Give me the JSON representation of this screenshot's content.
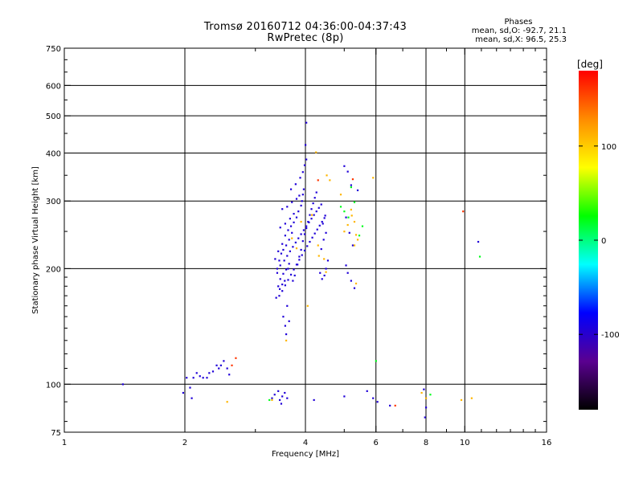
{
  "header": {
    "title_line1": "Tromsø 20160712 04:36:00-04:37:43",
    "title_line2": "RwPretec (8p)",
    "stats_heading": "Phases",
    "stats_o": "mean, sd,O: -92.7, 21.1",
    "stats_x": "mean, sd,X:  96.5, 25.3"
  },
  "chart_data": {
    "type": "scatter",
    "xlabel": "Frequency [MHz]",
    "ylabel": "Stationary phase Virtual Height [km]",
    "x_scale": "log",
    "y_scale": "log",
    "xlim": [
      1,
      16
    ],
    "ylim": [
      75,
      750
    ],
    "x_ticks": [
      1,
      2,
      4,
      6,
      8,
      10,
      16
    ],
    "y_ticks": [
      75,
      100,
      200,
      300,
      400,
      500,
      600,
      750
    ],
    "grid": true,
    "colorbar": {
      "label": "[deg]",
      "range": [
        -180,
        180
      ],
      "ticks": [
        100,
        0,
        -100
      ],
      "colors": [
        "#000000",
        "#5a0090",
        "#0000ff",
        "#00ffff",
        "#00ff00",
        "#ffff00",
        "#ff8c00",
        "#ff0000"
      ]
    },
    "series": [
      {
        "phase_deg": -95,
        "points": [
          [
            1.4,
            100
          ],
          [
            1.98,
            95
          ],
          [
            2.02,
            104
          ],
          [
            2.06,
            98
          ],
          [
            2.08,
            92
          ],
          [
            2.1,
            104
          ],
          [
            2.14,
            107
          ],
          [
            2.18,
            105
          ],
          [
            2.22,
            104
          ],
          [
            2.27,
            104
          ],
          [
            2.3,
            107
          ],
          [
            2.35,
            108
          ],
          [
            2.4,
            112
          ],
          [
            2.43,
            110
          ],
          [
            2.46,
            112
          ],
          [
            2.5,
            115
          ],
          [
            2.55,
            110
          ],
          [
            2.58,
            106
          ],
          [
            3.3,
            92
          ],
          [
            3.35,
            94
          ],
          [
            3.42,
            96
          ],
          [
            3.45,
            91
          ],
          [
            3.48,
            89
          ],
          [
            3.5,
            93
          ],
          [
            3.55,
            95
          ],
          [
            3.6,
            92
          ],
          [
            4.2,
            91
          ],
          [
            5.0,
            93
          ],
          [
            5.7,
            96
          ],
          [
            5.9,
            92
          ],
          [
            6.05,
            90
          ],
          [
            6.5,
            88
          ],
          [
            7.9,
            97
          ],
          [
            8.0,
            87
          ],
          [
            7.95,
            82
          ],
          [
            3.38,
            168
          ],
          [
            3.45,
            177
          ],
          [
            3.5,
            182
          ],
          [
            3.55,
            186
          ],
          [
            3.4,
            195
          ],
          [
            3.62,
            200
          ],
          [
            3.44,
            210
          ],
          [
            3.48,
            219
          ],
          [
            3.52,
            224
          ],
          [
            3.58,
            230
          ],
          [
            3.64,
            238
          ],
          [
            3.7,
            248
          ],
          [
            3.46,
            256
          ],
          [
            3.56,
            262
          ],
          [
            3.66,
            270
          ],
          [
            3.74,
            278
          ],
          [
            3.5,
            286
          ],
          [
            3.6,
            290
          ],
          [
            3.7,
            298
          ],
          [
            3.8,
            304
          ],
          [
            3.86,
            310
          ],
          [
            3.68,
            322
          ],
          [
            3.78,
            332
          ],
          [
            3.88,
            345
          ],
          [
            3.94,
            357
          ],
          [
            3.98,
            372
          ],
          [
            4.02,
            385
          ],
          [
            4.0,
            420
          ],
          [
            4.02,
            480
          ],
          [
            3.42,
            180
          ],
          [
            3.46,
            188
          ],
          [
            3.52,
            194
          ],
          [
            3.58,
            199
          ],
          [
            3.64,
            206
          ],
          [
            3.36,
            212
          ],
          [
            3.42,
            222
          ],
          [
            3.5,
            232
          ],
          [
            3.56,
            244
          ],
          [
            3.62,
            252
          ],
          [
            3.68,
            258
          ],
          [
            3.74,
            264
          ],
          [
            3.8,
            272
          ],
          [
            3.84,
            282
          ],
          [
            3.9,
            292
          ],
          [
            3.92,
            300
          ],
          [
            3.94,
            312
          ],
          [
            3.96,
            322
          ],
          [
            3.72,
            186
          ],
          [
            3.76,
            192
          ],
          [
            3.82,
            205
          ],
          [
            3.86,
            215
          ],
          [
            3.9,
            224
          ],
          [
            3.94,
            236
          ],
          [
            3.98,
            246
          ],
          [
            4.02,
            255
          ],
          [
            4.06,
            265
          ],
          [
            4.1,
            276
          ],
          [
            4.14,
            286
          ],
          [
            4.18,
            296
          ],
          [
            4.22,
            306
          ],
          [
            4.26,
            316
          ],
          [
            3.4,
            200
          ],
          [
            3.46,
            204
          ],
          [
            3.54,
            210
          ],
          [
            3.6,
            216
          ],
          [
            3.66,
            222
          ],
          [
            3.72,
            228
          ],
          [
            3.78,
            234
          ],
          [
            3.84,
            240
          ],
          [
            3.9,
            246
          ],
          [
            3.96,
            252
          ],
          [
            4.02,
            258
          ],
          [
            4.08,
            264
          ],
          [
            4.14,
            270
          ],
          [
            4.2,
            276
          ],
          [
            4.26,
            282
          ],
          [
            4.32,
            288
          ],
          [
            4.38,
            294
          ],
          [
            3.44,
            170
          ],
          [
            3.5,
            175
          ],
          [
            3.56,
            181
          ],
          [
            3.62,
            187
          ],
          [
            3.68,
            193
          ],
          [
            3.74,
            199
          ],
          [
            3.8,
            205
          ],
          [
            3.86,
            211
          ],
          [
            3.92,
            217
          ],
          [
            3.98,
            223
          ],
          [
            4.04,
            229
          ],
          [
            4.1,
            235
          ],
          [
            4.16,
            241
          ],
          [
            4.22,
            247
          ],
          [
            4.28,
            253
          ],
          [
            4.34,
            259
          ],
          [
            4.4,
            265
          ],
          [
            4.46,
            271
          ],
          [
            3.52,
            150
          ],
          [
            3.56,
            142
          ],
          [
            3.6,
            160
          ],
          [
            3.58,
            135
          ],
          [
            3.64,
            146
          ],
          [
            4.35,
            195
          ],
          [
            4.4,
            188
          ],
          [
            4.46,
            192
          ],
          [
            4.5,
            200
          ],
          [
            4.55,
            210
          ],
          [
            4.38,
            225
          ],
          [
            4.44,
            238
          ],
          [
            4.5,
            248
          ],
          [
            4.42,
            262
          ],
          [
            4.48,
            275
          ],
          [
            5.0,
            370
          ],
          [
            5.1,
            358
          ],
          [
            5.2,
            330
          ],
          [
            5.4,
            320
          ],
          [
            5.05,
            272
          ],
          [
            5.15,
            248
          ],
          [
            5.25,
            230
          ],
          [
            5.05,
            204
          ],
          [
            5.1,
            195
          ],
          [
            5.2,
            186
          ],
          [
            5.3,
            178
          ],
          [
            10.8,
            235
          ]
        ]
      },
      {
        "phase_deg": 110,
        "points": [
          [
            2.55,
            90
          ],
          [
            3.3,
            91
          ],
          [
            3.58,
            130
          ],
          [
            3.7,
            240
          ],
          [
            3.8,
            226
          ],
          [
            3.9,
            265
          ],
          [
            4.05,
            160
          ],
          [
            4.15,
            276
          ],
          [
            4.25,
            402
          ],
          [
            4.3,
            230
          ],
          [
            4.32,
            216
          ],
          [
            4.45,
            212
          ],
          [
            4.5,
            196
          ],
          [
            4.52,
            350
          ],
          [
            4.6,
            340
          ],
          [
            4.9,
            312
          ],
          [
            5.0,
            250
          ],
          [
            5.1,
            260
          ],
          [
            5.22,
            275
          ],
          [
            5.3,
            265
          ],
          [
            5.35,
            245
          ],
          [
            5.4,
            238
          ],
          [
            5.3,
            230
          ],
          [
            5.35,
            183
          ],
          [
            5.2,
            285
          ],
          [
            5.9,
            345
          ],
          [
            9.8,
            91
          ],
          [
            10.4,
            92
          ],
          [
            8.0,
            92
          ],
          [
            7.8,
            95
          ]
        ]
      },
      {
        "phase_deg": 160,
        "points": [
          [
            2.62,
            112
          ],
          [
            2.68,
            117
          ],
          [
            4.3,
            340
          ],
          [
            5.25,
            342
          ],
          [
            6.7,
            88
          ],
          [
            9.9,
            282
          ]
        ]
      },
      {
        "phase_deg": 20,
        "points": [
          [
            4.9,
            290
          ],
          [
            5.0,
            282
          ],
          [
            5.12,
            272
          ],
          [
            5.2,
            326
          ],
          [
            5.3,
            298
          ],
          [
            5.45,
            244
          ],
          [
            5.55,
            258
          ],
          [
            6.0,
            115
          ],
          [
            10.9,
            215
          ],
          [
            8.2,
            94
          ],
          [
            3.25,
            91
          ]
        ]
      }
    ]
  }
}
